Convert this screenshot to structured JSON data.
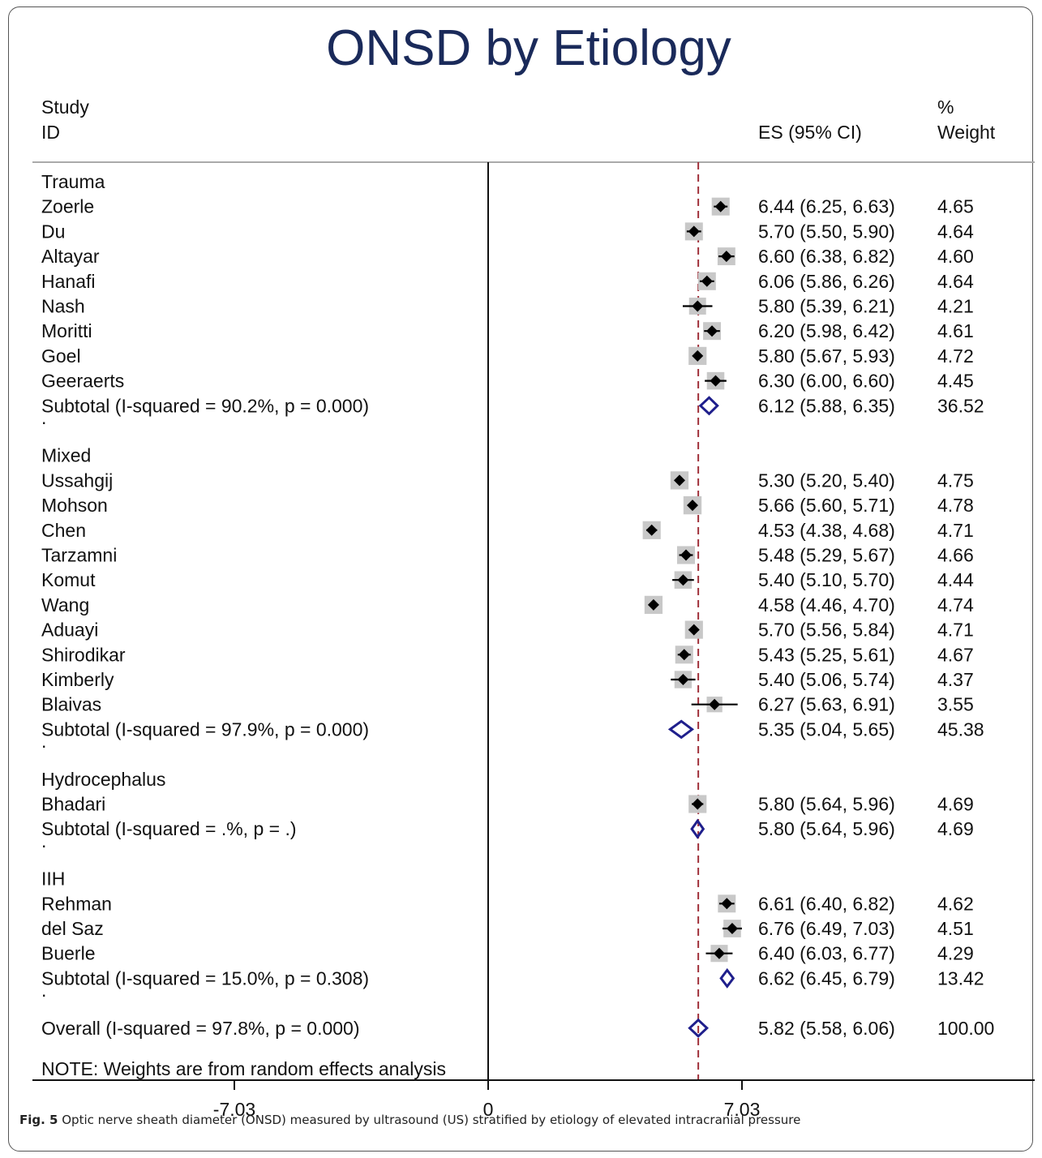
{
  "chart_data": {
    "type": "forest",
    "title": "ONSD by Etiology",
    "headers": {
      "study_line1": "Study",
      "study_line2": "ID",
      "es": "ES (95% CI)",
      "weight_line1": "%",
      "weight_line2": "Weight"
    },
    "groups": [
      {
        "name": "Trauma",
        "studies": [
          {
            "name": "Zoerle",
            "es": 6.44,
            "lo": 6.25,
            "hi": 6.63,
            "text": "6.44 (6.25, 6.63)",
            "weight": "4.65"
          },
          {
            "name": "Du",
            "es": 5.7,
            "lo": 5.5,
            "hi": 5.9,
            "text": "5.70 (5.50, 5.90)",
            "weight": "4.64"
          },
          {
            "name": "Altayar",
            "es": 6.6,
            "lo": 6.38,
            "hi": 6.82,
            "text": "6.60 (6.38, 6.82)",
            "weight": "4.60"
          },
          {
            "name": "Hanafi",
            "es": 6.06,
            "lo": 5.86,
            "hi": 6.26,
            "text": "6.06 (5.86, 6.26)",
            "weight": "4.64"
          },
          {
            "name": "Nash",
            "es": 5.8,
            "lo": 5.39,
            "hi": 6.21,
            "text": "5.80 (5.39, 6.21)",
            "weight": "4.21"
          },
          {
            "name": "Moritti",
            "es": 6.2,
            "lo": 5.98,
            "hi": 6.42,
            "text": "6.20 (5.98, 6.42)",
            "weight": "4.61"
          },
          {
            "name": "Goel",
            "es": 5.8,
            "lo": 5.67,
            "hi": 5.93,
            "text": "5.80 (5.67, 5.93)",
            "weight": "4.72"
          },
          {
            "name": "Geeraerts",
            "es": 6.3,
            "lo": 6.0,
            "hi": 6.6,
            "text": "6.30 (6.00, 6.60)",
            "weight": "4.45"
          }
        ],
        "subtotal": {
          "label": "Subtotal  (I-squared = 90.2%, p = 0.000)",
          "es": 6.12,
          "lo": 5.88,
          "hi": 6.35,
          "text": "6.12 (5.88, 6.35)",
          "weight": "36.52"
        }
      },
      {
        "name": "Mixed",
        "studies": [
          {
            "name": "Ussahgij",
            "es": 5.3,
            "lo": 5.2,
            "hi": 5.4,
            "text": "5.30 (5.20, 5.40)",
            "weight": "4.75"
          },
          {
            "name": "Mohson",
            "es": 5.66,
            "lo": 5.6,
            "hi": 5.71,
            "text": "5.66 (5.60, 5.71)",
            "weight": "4.78"
          },
          {
            "name": "Chen",
            "es": 4.53,
            "lo": 4.38,
            "hi": 4.68,
            "text": "4.53 (4.38, 4.68)",
            "weight": "4.71"
          },
          {
            "name": "Tarzamni",
            "es": 5.48,
            "lo": 5.29,
            "hi": 5.67,
            "text": "5.48 (5.29, 5.67)",
            "weight": "4.66"
          },
          {
            "name": "Komut",
            "es": 5.4,
            "lo": 5.1,
            "hi": 5.7,
            "text": "5.40 (5.10, 5.70)",
            "weight": "4.44"
          },
          {
            "name": "Wang",
            "es": 4.58,
            "lo": 4.46,
            "hi": 4.7,
            "text": "4.58 (4.46, 4.70)",
            "weight": "4.74"
          },
          {
            "name": "Aduayi",
            "es": 5.7,
            "lo": 5.56,
            "hi": 5.84,
            "text": "5.70 (5.56, 5.84)",
            "weight": "4.71"
          },
          {
            "name": "Shirodikar",
            "es": 5.43,
            "lo": 5.25,
            "hi": 5.61,
            "text": "5.43 (5.25, 5.61)",
            "weight": "4.67"
          },
          {
            "name": "Kimberly",
            "es": 5.4,
            "lo": 5.06,
            "hi": 5.74,
            "text": "5.40 (5.06, 5.74)",
            "weight": "4.37"
          },
          {
            "name": "Blaivas",
            "es": 6.27,
            "lo": 5.63,
            "hi": 6.91,
            "text": "6.27 (5.63, 6.91)",
            "weight": "3.55"
          }
        ],
        "subtotal": {
          "label": "Subtotal  (I-squared = 97.9%, p = 0.000)",
          "es": 5.35,
          "lo": 5.04,
          "hi": 5.65,
          "text": "5.35 (5.04, 5.65)",
          "weight": "45.38"
        }
      },
      {
        "name": "Hydrocephalus",
        "studies": [
          {
            "name": "Bhadari",
            "es": 5.8,
            "lo": 5.64,
            "hi": 5.96,
            "text": "5.80 (5.64, 5.96)",
            "weight": "4.69"
          }
        ],
        "subtotal": {
          "label": "Subtotal  (I-squared = .%, p = .)",
          "es": 5.8,
          "lo": 5.64,
          "hi": 5.96,
          "text": "5.80 (5.64, 5.96)",
          "weight": "4.69"
        }
      },
      {
        "name": "IIH",
        "studies": [
          {
            "name": "Rehman",
            "es": 6.61,
            "lo": 6.4,
            "hi": 6.82,
            "text": "6.61 (6.40, 6.82)",
            "weight": "4.62"
          },
          {
            "name": "del Saz",
            "es": 6.76,
            "lo": 6.49,
            "hi": 7.03,
            "text": "6.76 (6.49, 7.03)",
            "weight": "4.51"
          },
          {
            "name": "Buerle",
            "es": 6.4,
            "lo": 6.03,
            "hi": 6.77,
            "text": "6.40 (6.03, 6.77)",
            "weight": "4.29"
          }
        ],
        "subtotal": {
          "label": "Subtotal  (I-squared = 15.0%, p = 0.308)",
          "es": 6.62,
          "lo": 6.45,
          "hi": 6.79,
          "text": "6.62 (6.45, 6.79)",
          "weight": "13.42"
        }
      }
    ],
    "overall": {
      "label": "Overall  (I-squared = 97.8%, p = 0.000)",
      "es": 5.82,
      "lo": 5.58,
      "hi": 6.06,
      "text": "5.82 (5.58, 6.06)",
      "weight": "100.00"
    },
    "note": "NOTE: Weights are from random effects analysis",
    "x_ticks": [
      -7.03,
      0,
      7.03
    ],
    "x_tick_labels": [
      "-7.03",
      "0",
      "7.03"
    ],
    "xlim": [
      -7.03,
      7.03
    ],
    "null_line": 0,
    "overall_line": 5.82,
    "colors": {
      "title": "#1a2a5a",
      "point": "#000000",
      "box": "#c8c8c8",
      "diamond": "#1f1f8c",
      "overall_line": "#a0303a"
    }
  },
  "caption": {
    "label": "Fig. 5",
    "text": " Optic nerve sheath diameter (ONSD) measured by ultrasound (US) stratified by etiology of elevated intracranial pressure"
  }
}
